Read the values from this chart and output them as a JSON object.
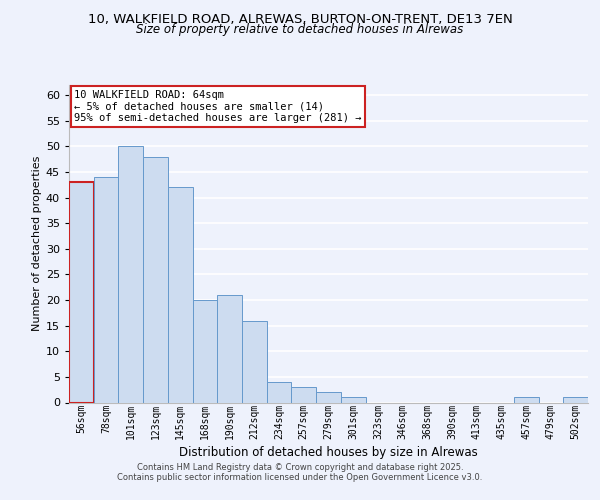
{
  "title_line1": "10, WALKFIELD ROAD, ALREWAS, BURTON-ON-TRENT, DE13 7EN",
  "title_line2": "Size of property relative to detached houses in Alrewas",
  "xlabel": "Distribution of detached houses by size in Alrewas",
  "ylabel": "Number of detached properties",
  "categories": [
    "56sqm",
    "78sqm",
    "101sqm",
    "123sqm",
    "145sqm",
    "168sqm",
    "190sqm",
    "212sqm",
    "234sqm",
    "257sqm",
    "279sqm",
    "301sqm",
    "323sqm",
    "346sqm",
    "368sqm",
    "390sqm",
    "413sqm",
    "435sqm",
    "457sqm",
    "479sqm",
    "502sqm"
  ],
  "values": [
    43,
    44,
    50,
    48,
    42,
    20,
    21,
    16,
    4,
    3,
    2,
    1,
    0,
    0,
    0,
    0,
    0,
    0,
    1,
    0,
    1
  ],
  "bar_color": "#cddcf0",
  "bar_edge_color": "#6699cc",
  "highlight_bar_index": 0,
  "highlight_edge_color": "#cc2222",
  "annotation_text": "10 WALKFIELD ROAD: 64sqm\n← 5% of detached houses are smaller (14)\n95% of semi-detached houses are larger (281) →",
  "annotation_box_color": "#ffffff",
  "annotation_box_edge_color": "#cc2222",
  "ylim": [
    0,
    62
  ],
  "yticks": [
    0,
    5,
    10,
    15,
    20,
    25,
    30,
    35,
    40,
    45,
    50,
    55,
    60
  ],
  "footer_line1": "Contains HM Land Registry data © Crown copyright and database right 2025.",
  "footer_line2": "Contains public sector information licensed under the Open Government Licence v3.0.",
  "bg_color": "#eef2fc",
  "grid_color": "#ffffff"
}
